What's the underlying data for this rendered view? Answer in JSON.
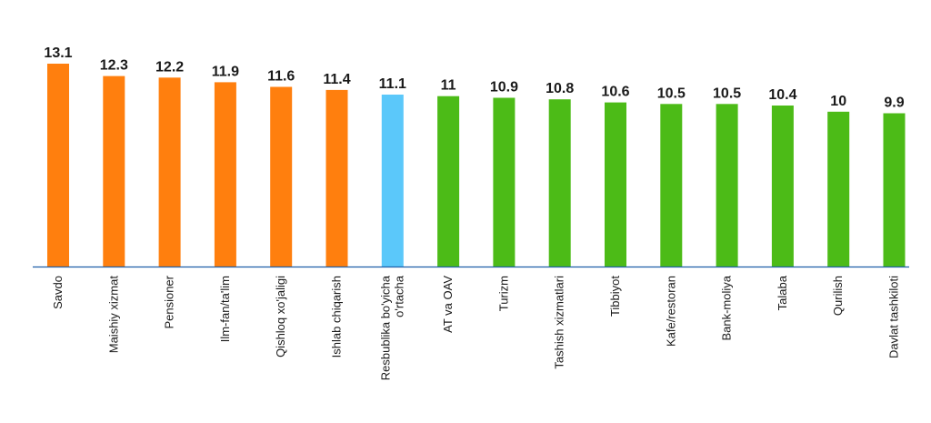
{
  "chart_data": {
    "type": "bar",
    "categories": [
      "Savdo",
      "Maishiy xizmat",
      "Pensioner",
      "Ilm-fan/ta'lim",
      "Qishloq xo'jaligi",
      "Ishlab chiqarish",
      "Resbublika bo'yicha o'rtacha",
      "AT va OAV",
      "Turizm",
      "Tashish xizmatlari",
      "Tibbiyot",
      "Kafe/restoran",
      "Bank-moliya",
      "Talaba",
      "Qurilish",
      "Davlat tashkiloti"
    ],
    "category_lines": [
      [
        "Savdo"
      ],
      [
        "Maishiy xizmat"
      ],
      [
        "Pensioner"
      ],
      [
        "Ilm-fan/ta'lim"
      ],
      [
        "Qishloq xo'jaligi"
      ],
      [
        "Ishlab chiqarish"
      ],
      [
        "Resbublika bo'yicha",
        "o'rtacha"
      ],
      [
        "AT va OAV"
      ],
      [
        "Turizm"
      ],
      [
        "Tashish xizmatlari"
      ],
      [
        "Tibbiyot"
      ],
      [
        "Kafe/restoran"
      ],
      [
        "Bank-moliya"
      ],
      [
        "Talaba"
      ],
      [
        "Qurilish"
      ],
      [
        "Davlat tashkiloti"
      ]
    ],
    "values": [
      13.1,
      12.3,
      12.2,
      11.9,
      11.6,
      11.4,
      11.1,
      11,
      10.9,
      10.8,
      10.6,
      10.5,
      10.5,
      10.4,
      10,
      9.9
    ],
    "value_labels": [
      "13.1",
      "12.3",
      "12.2",
      "11.9",
      "11.6",
      "11.4",
      "11.1",
      "11",
      "10.9",
      "10.8",
      "10.6",
      "10.5",
      "10.5",
      "10.4",
      "10",
      "9.9"
    ],
    "colors": [
      "#ff7f0e",
      "#ff7f0e",
      "#ff7f0e",
      "#ff7f0e",
      "#ff7f0e",
      "#ff7f0e",
      "#5bc8fa",
      "#4cbb17",
      "#4cbb17",
      "#4cbb17",
      "#4cbb17",
      "#4cbb17",
      "#4cbb17",
      "#4cbb17",
      "#4cbb17",
      "#4cbb17"
    ],
    "title": "",
    "xlabel": "",
    "ylabel": "",
    "ylim": [
      0,
      13.1
    ],
    "grid": false,
    "legend": "none",
    "axis_color": "#1f5fa8"
  }
}
